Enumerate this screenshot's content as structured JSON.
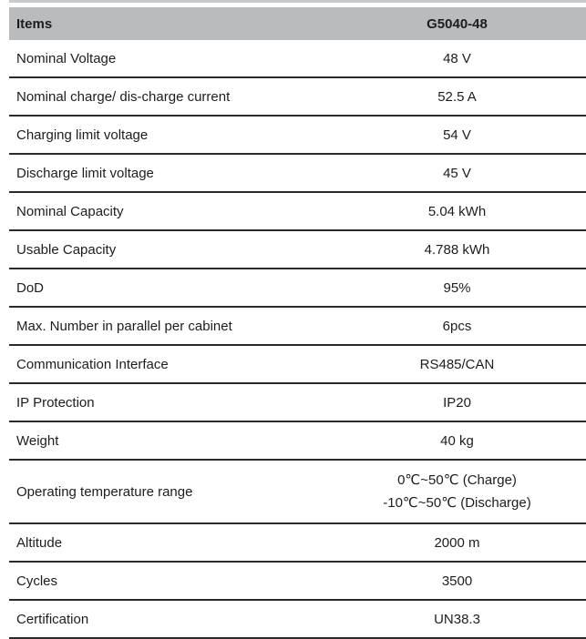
{
  "table": {
    "header": {
      "items_label": "Items",
      "model": "G5040-48"
    },
    "rows": [
      {
        "label": "Nominal Voltage",
        "value": "48 V"
      },
      {
        "label": "Nominal charge/ dis-charge current",
        "value": "52.5 A"
      },
      {
        "label": "Charging limit voltage",
        "value": "54 V"
      },
      {
        "label": "Discharge limit voltage",
        "value": "45 V"
      },
      {
        "label": "Nominal Capacity",
        "value": "5.04 kWh"
      },
      {
        "label": "Usable Capacity",
        "value": "4.788 kWh"
      },
      {
        "label": "DoD",
        "value": "95%"
      },
      {
        "label": "Max. Number in parallel per cabinet",
        "value": "6pcs"
      },
      {
        "label": "Communication Interface",
        "value": "RS485/CAN"
      },
      {
        "label": "IP Protection",
        "value": "IP20"
      },
      {
        "label": "Weight",
        "value": "40 kg"
      },
      {
        "label": "Operating temperature range",
        "value": [
          "0℃~50℃ (Charge)",
          "-10℃~50℃ (Discharge)"
        ]
      },
      {
        "label": "Altitude",
        "value": "2000 m"
      },
      {
        "label": "Cycles",
        "value": "3500"
      },
      {
        "label": "Certification",
        "value": "UN38.3"
      }
    ],
    "colors": {
      "header_bg": "#b9bbbd",
      "row_border": "#2a2a2a",
      "top_rule": "#c7c9cb",
      "text": "#1d1d1d"
    }
  }
}
